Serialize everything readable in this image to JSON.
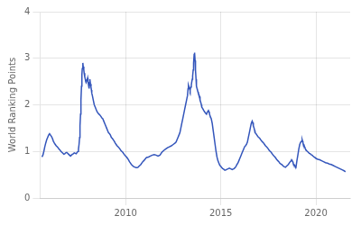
{
  "chart_data": {
    "type": "line",
    "ylabel": "World Ranking Points",
    "color": "#3355bb",
    "grid": true,
    "xlim": [
      2005.5,
      2021.8
    ],
    "ylim": [
      0,
      4
    ],
    "xticks": [
      2010,
      2015,
      2020
    ],
    "yticks": [
      0,
      1,
      2,
      3,
      4
    ],
    "x": [
      2005.6,
      2005.65,
      2005.7,
      2005.75,
      2005.8,
      2005.85,
      2005.9,
      2005.95,
      2006.0,
      2006.05,
      2006.1,
      2006.15,
      2006.2,
      2006.25,
      2006.3,
      2006.35,
      2006.4,
      2006.45,
      2006.5,
      2006.55,
      2006.6,
      2006.65,
      2006.7,
      2006.75,
      2006.8,
      2006.85,
      2006.9,
      2006.95,
      2007.0,
      2007.05,
      2007.1,
      2007.15,
      2007.2,
      2007.25,
      2007.3,
      2007.35,
      2007.4,
      2007.45,
      2007.5,
      2007.52,
      2007.55,
      2007.58,
      2007.6,
      2007.63,
      2007.65,
      2007.68,
      2007.7,
      2007.72,
      2007.75,
      2007.77,
      2007.8,
      2007.82,
      2007.85,
      2007.88,
      2007.9,
      2007.92,
      2007.95,
      2007.98,
      2008.0,
      2008.02,
      2008.05,
      2008.08,
      2008.1,
      2008.12,
      2008.15,
      2008.18,
      2008.2,
      2008.22,
      2008.25,
      2008.3,
      2008.35,
      2008.4,
      2008.45,
      2008.5,
      2008.55,
      2008.6,
      2008.65,
      2008.7,
      2008.75,
      2008.8,
      2008.85,
      2008.9,
      2008.95,
      2009.0,
      2009.05,
      2009.1,
      2009.15,
      2009.2,
      2009.25,
      2009.3,
      2009.35,
      2009.4,
      2009.45,
      2009.5,
      2009.55,
      2009.6,
      2009.65,
      2009.7,
      2009.75,
      2009.8,
      2009.85,
      2009.9,
      2009.95,
      2010.0,
      2010.05,
      2010.1,
      2010.15,
      2010.2,
      2010.25,
      2010.3,
      2010.35,
      2010.4,
      2010.45,
      2010.5,
      2010.55,
      2010.6,
      2010.65,
      2010.7,
      2010.75,
      2010.8,
      2010.85,
      2010.9,
      2010.95,
      2011.0,
      2011.05,
      2011.1,
      2011.2,
      2011.3,
      2011.4,
      2011.5,
      2011.6,
      2011.7,
      2011.8,
      2011.85,
      2011.9,
      2011.95,
      2012.0,
      2012.1,
      2012.2,
      2012.3,
      2012.4,
      2012.5,
      2012.6,
      2012.65,
      2012.7,
      2012.75,
      2012.8,
      2012.85,
      2012.9,
      2012.95,
      2013.0,
      2013.05,
      2013.1,
      2013.15,
      2013.2,
      2013.25,
      2013.28,
      2013.3,
      2013.33,
      2013.36,
      2013.38,
      2013.4,
      2013.42,
      2013.45,
      2013.47,
      2013.5,
      2013.52,
      2013.55,
      2013.57,
      2013.6,
      2013.62,
      2013.63,
      2013.65,
      2013.67,
      2013.7,
      2013.72,
      2013.75,
      2013.77,
      2013.8,
      2013.82,
      2013.85,
      2013.88,
      2013.9,
      2013.92,
      2013.95,
      2013.98,
      2014.0,
      2014.05,
      2014.1,
      2014.15,
      2014.2,
      2014.25,
      2014.3,
      2014.35,
      2014.38,
      2014.4,
      2014.42,
      2014.45,
      2014.5,
      2014.55,
      2014.6,
      2014.65,
      2014.7,
      2014.75,
      2014.8,
      2014.85,
      2014.9,
      2014.95,
      2015.0,
      2015.05,
      2015.1,
      2015.15,
      2015.2,
      2015.25,
      2015.3,
      2015.35,
      2015.4,
      2015.45,
      2015.5,
      2015.55,
      2015.6,
      2015.65,
      2015.7,
      2015.75,
      2015.8,
      2015.85,
      2015.9,
      2015.95,
      2016.0,
      2016.05,
      2016.1,
      2016.15,
      2016.2,
      2016.25,
      2016.3,
      2016.35,
      2016.4,
      2016.45,
      2016.5,
      2016.55,
      2016.6,
      2016.65,
      2016.68,
      2016.7,
      2016.72,
      2016.75,
      2016.78,
      2016.8,
      2016.85,
      2016.9,
      2016.95,
      2017.0,
      2017.05,
      2017.1,
      2017.15,
      2017.2,
      2017.25,
      2017.3,
      2017.35,
      2017.4,
      2017.45,
      2017.5,
      2017.55,
      2017.6,
      2017.65,
      2017.7,
      2017.75,
      2017.8,
      2017.85,
      2017.9,
      2017.95,
      2018.0,
      2018.05,
      2018.1,
      2018.15,
      2018.2,
      2018.25,
      2018.3,
      2018.35,
      2018.4,
      2018.45,
      2018.5,
      2018.55,
      2018.6,
      2018.65,
      2018.7,
      2018.72,
      2018.75,
      2018.78,
      2018.8,
      2018.82,
      2018.85,
      2018.88,
      2018.9,
      2018.95,
      2019.0,
      2019.05,
      2019.1,
      2019.15,
      2019.2,
      2019.25,
      2019.28,
      2019.3,
      2019.32,
      2019.35,
      2019.38,
      2019.4,
      2019.42,
      2019.45,
      2019.5,
      2019.55,
      2019.6,
      2019.65,
      2019.7,
      2019.75,
      2019.8,
      2019.85,
      2019.9,
      2019.95,
      2020.0,
      2020.1,
      2020.2,
      2020.3,
      2020.4,
      2020.5,
      2020.6,
      2020.7,
      2020.8,
      2020.9,
      2021.0,
      2021.1,
      2021.2,
      2021.3,
      2021.4,
      2021.5,
      2021.55
    ],
    "values": [
      0.88,
      0.92,
      1.0,
      1.1,
      1.18,
      1.25,
      1.3,
      1.35,
      1.38,
      1.35,
      1.32,
      1.28,
      1.22,
      1.18,
      1.15,
      1.12,
      1.1,
      1.08,
      1.05,
      1.03,
      1.0,
      0.98,
      0.96,
      0.94,
      0.95,
      0.97,
      0.98,
      0.96,
      0.94,
      0.92,
      0.9,
      0.92,
      0.94,
      0.95,
      0.97,
      0.96,
      0.95,
      0.98,
      1.0,
      1.05,
      1.15,
      1.3,
      1.55,
      1.8,
      2.1,
      2.4,
      2.65,
      2.78,
      2.9,
      2.82,
      2.75,
      2.68,
      2.6,
      2.55,
      2.5,
      2.48,
      2.52,
      2.55,
      2.58,
      2.5,
      2.42,
      2.35,
      2.48,
      2.55,
      2.45,
      2.38,
      2.32,
      2.25,
      2.2,
      2.1,
      2.0,
      1.95,
      1.9,
      1.85,
      1.82,
      1.8,
      1.78,
      1.75,
      1.72,
      1.7,
      1.65,
      1.6,
      1.55,
      1.5,
      1.45,
      1.4,
      1.38,
      1.35,
      1.3,
      1.28,
      1.25,
      1.22,
      1.18,
      1.15,
      1.12,
      1.1,
      1.08,
      1.05,
      1.02,
      1.0,
      0.98,
      0.95,
      0.92,
      0.9,
      0.88,
      0.85,
      0.82,
      0.78,
      0.75,
      0.72,
      0.7,
      0.68,
      0.67,
      0.66,
      0.65,
      0.65,
      0.66,
      0.68,
      0.7,
      0.72,
      0.75,
      0.78,
      0.8,
      0.82,
      0.85,
      0.87,
      0.88,
      0.9,
      0.92,
      0.93,
      0.92,
      0.9,
      0.92,
      0.95,
      0.98,
      1.0,
      1.02,
      1.05,
      1.08,
      1.1,
      1.12,
      1.15,
      1.18,
      1.2,
      1.25,
      1.3,
      1.35,
      1.4,
      1.5,
      1.6,
      1.7,
      1.8,
      1.9,
      2.0,
      2.1,
      2.2,
      2.35,
      2.42,
      2.38,
      2.35,
      2.3,
      2.32,
      2.38,
      2.42,
      2.48,
      2.55,
      2.62,
      2.75,
      2.9,
      3.08,
      3.12,
      3.1,
      2.95,
      2.75,
      2.55,
      2.4,
      2.35,
      2.32,
      2.28,
      2.25,
      2.22,
      2.18,
      2.15,
      2.1,
      2.05,
      2.0,
      1.95,
      1.92,
      1.88,
      1.85,
      1.82,
      1.8,
      1.85,
      1.88,
      1.85,
      1.82,
      1.78,
      1.75,
      1.7,
      1.6,
      1.45,
      1.3,
      1.15,
      1.0,
      0.88,
      0.8,
      0.75,
      0.7,
      0.68,
      0.65,
      0.63,
      0.62,
      0.6,
      0.6,
      0.61,
      0.62,
      0.63,
      0.64,
      0.63,
      0.62,
      0.61,
      0.62,
      0.63,
      0.65,
      0.68,
      0.72,
      0.75,
      0.8,
      0.85,
      0.9,
      0.95,
      1.0,
      1.05,
      1.1,
      1.12,
      1.15,
      1.2,
      1.3,
      1.4,
      1.5,
      1.6,
      1.65,
      1.62,
      1.58,
      1.55,
      1.5,
      1.45,
      1.4,
      1.38,
      1.35,
      1.32,
      1.3,
      1.28,
      1.25,
      1.22,
      1.2,
      1.18,
      1.15,
      1.12,
      1.1,
      1.08,
      1.05,
      1.02,
      1.0,
      0.98,
      0.95,
      0.92,
      0.9,
      0.88,
      0.85,
      0.82,
      0.8,
      0.78,
      0.75,
      0.73,
      0.72,
      0.7,
      0.68,
      0.67,
      0.66,
      0.68,
      0.7,
      0.72,
      0.75,
      0.78,
      0.8,
      0.82,
      0.8,
      0.78,
      0.75,
      0.73,
      0.72,
      0.7,
      0.68,
      0.66,
      0.8,
      0.92,
      1.05,
      1.15,
      1.2,
      1.22,
      1.25,
      1.22,
      1.18,
      1.15,
      1.12,
      1.1,
      1.08,
      1.05,
      1.02,
      1.0,
      0.98,
      0.96,
      0.95,
      0.93,
      0.92,
      0.9,
      0.88,
      0.87,
      0.85,
      0.83,
      0.82,
      0.8,
      0.78,
      0.76,
      0.75,
      0.73,
      0.72,
      0.7,
      0.68,
      0.66,
      0.64,
      0.62,
      0.6,
      0.58,
      0.56
    ]
  }
}
